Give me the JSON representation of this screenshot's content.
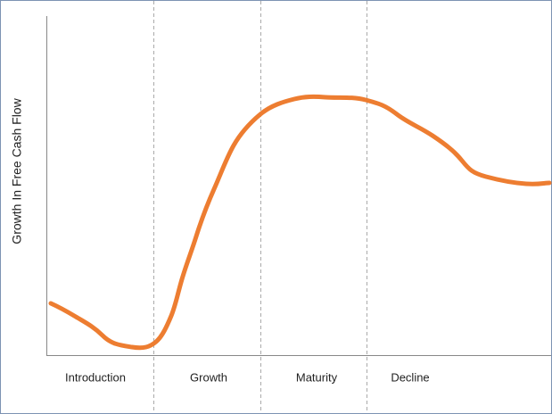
{
  "axis_label": "Growth In Free Cash Flow",
  "stages": [
    "Introduction",
    "Growth",
    "Maturity",
    "Decline"
  ]
}
